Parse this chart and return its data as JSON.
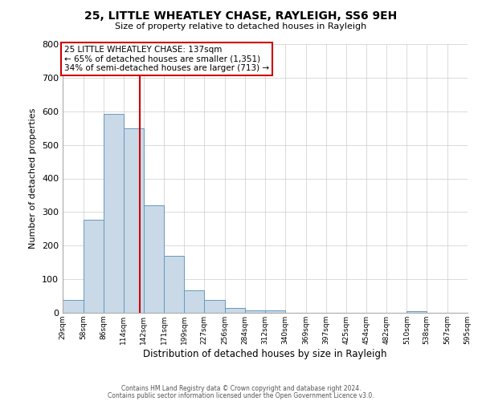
{
  "title": "25, LITTLE WHEATLEY CHASE, RAYLEIGH, SS6 9EH",
  "subtitle": "Size of property relative to detached houses in Rayleigh",
  "xlabel": "Distribution of detached houses by size in Rayleigh",
  "ylabel": "Number of detached properties",
  "bar_color": "#c9d9e8",
  "bar_edge_color": "#6699bb",
  "bins": [
    29,
    58,
    86,
    114,
    142,
    171,
    199,
    227,
    256,
    284,
    312,
    340,
    369,
    397,
    425,
    454,
    482,
    510,
    538,
    567,
    595
  ],
  "counts": [
    38,
    278,
    592,
    550,
    320,
    170,
    68,
    38,
    14,
    8,
    7,
    0,
    0,
    0,
    0,
    0,
    0,
    5,
    0,
    0
  ],
  "vline_x": 137,
  "vline_color": "#cc0000",
  "annotation_text": "25 LITTLE WHEATLEY CHASE: 137sqm\n← 65% of detached houses are smaller (1,351)\n34% of semi-detached houses are larger (713) →",
  "annotation_box_color": "#ffffff",
  "annotation_box_edgecolor": "#cc0000",
  "ylim": [
    0,
    800
  ],
  "yticks": [
    0,
    100,
    200,
    300,
    400,
    500,
    600,
    700,
    800
  ],
  "footer_line1": "Contains HM Land Registry data © Crown copyright and database right 2024.",
  "footer_line2": "Contains public sector information licensed under the Open Government Licence v3.0.",
  "background_color": "#ffffff",
  "grid_color": "#cccccc"
}
